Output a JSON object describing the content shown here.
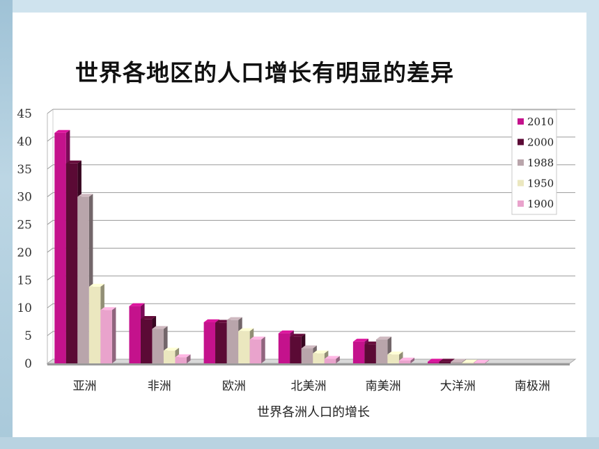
{
  "slide": {
    "title": "世界各地区的人口增长有明显的差异"
  },
  "chart_data": {
    "type": "bar",
    "xlabel": "世界各洲人口的增长",
    "ylabel": "",
    "ylim": [
      0,
      45
    ],
    "yticks": [
      0,
      5,
      10,
      15,
      20,
      25,
      30,
      35,
      40,
      45
    ],
    "grid": true,
    "legend_position": "top-right",
    "categories": [
      "亚洲",
      "非洲",
      "欧洲",
      "北美洲",
      "南美洲",
      "大洋洲",
      "南极洲"
    ],
    "series": [
      {
        "name": "2010",
        "color": "#c4128c",
        "values": [
          41.5,
          10.3,
          7.4,
          5.4,
          3.9,
          0.3,
          0
        ]
      },
      {
        "name": "2000",
        "color": "#5b0a35",
        "values": [
          36,
          8,
          7.3,
          4.8,
          3.4,
          0.3,
          0
        ]
      },
      {
        "name": "1988",
        "color": "#b9a5ab",
        "values": [
          30,
          6.2,
          7.8,
          2.7,
          4.3,
          0.25,
          0
        ]
      },
      {
        "name": "1950",
        "color": "#ebe7bf",
        "values": [
          13.8,
          2.3,
          5.8,
          1.8,
          1.6,
          0.15,
          0
        ]
      },
      {
        "name": "1900",
        "color": "#e9a3cc",
        "values": [
          9.6,
          1.1,
          4.3,
          0.8,
          0.5,
          0.1,
          0
        ]
      }
    ]
  }
}
